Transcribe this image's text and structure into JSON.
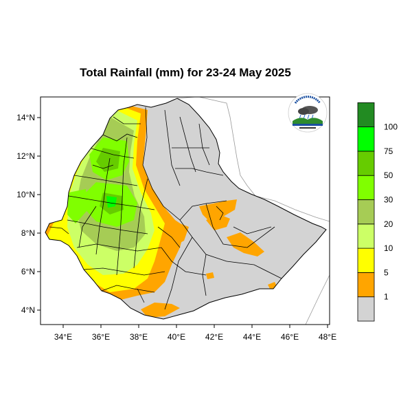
{
  "title": "Total Rainfall (mm) for 23-24 May 2025",
  "x_ticks": [
    "34°E",
    "36°E",
    "38°E",
    "40°E",
    "42°E",
    "44°E",
    "46°E",
    "48°E"
  ],
  "y_ticks": [
    "4°N",
    "6°N",
    "8°N",
    "10°N",
    "12°N",
    "14°N"
  ],
  "legend": {
    "bins": [
      {
        "label": "1",
        "color": "#d3d3d3"
      },
      {
        "label": "5",
        "color": "#ffa500"
      },
      {
        "label": "10",
        "color": "#ffff00"
      },
      {
        "label": "20",
        "color": "#ccff66"
      },
      {
        "label": "30",
        "color": "#a6cc55"
      },
      {
        "label": "50",
        "color": "#80ff00"
      },
      {
        "label": "75",
        "color": "#66cc00"
      },
      {
        "label": "100",
        "color": "#00ff00"
      },
      {
        "label": "",
        "color": "#228b22"
      }
    ]
  },
  "colors": {
    "land": "#d3d3d3",
    "outside": "#ffffff",
    "boundary": "#000000",
    "neighbor_border": "#999999"
  },
  "logo_icon": "ethiopian-meteorology-institute-logo"
}
